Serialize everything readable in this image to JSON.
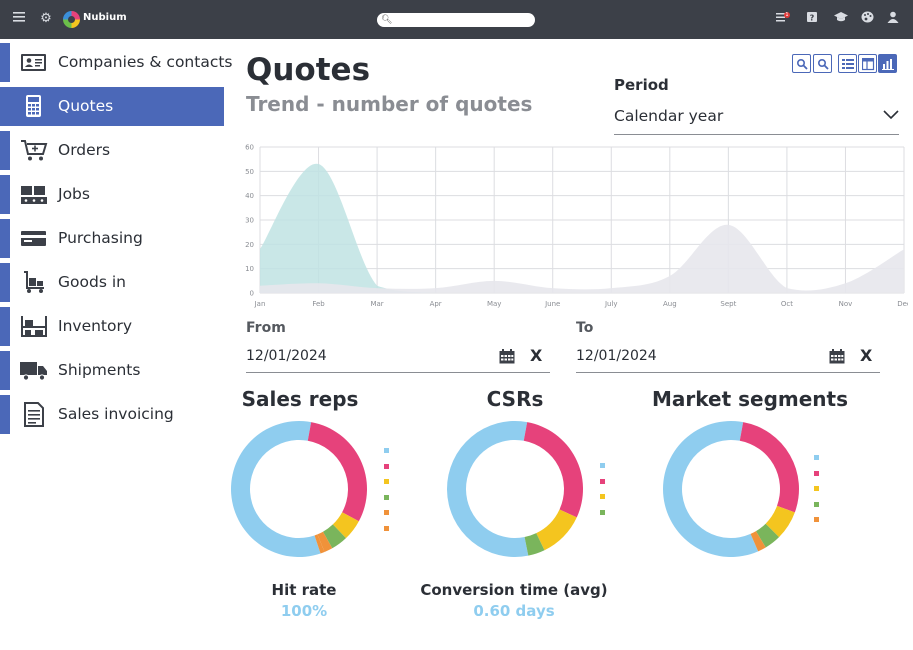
{
  "app": {
    "brand": "Nubium",
    "notification_count": "1"
  },
  "search": {
    "placeholder": ""
  },
  "sidebar": {
    "items": [
      {
        "label": "Companies & contacts",
        "icon": "contact-card-icon",
        "active": false
      },
      {
        "label": "Quotes",
        "icon": "calculator-icon",
        "active": true
      },
      {
        "label": "Orders",
        "icon": "cart-icon",
        "active": false
      },
      {
        "label": "Jobs",
        "icon": "boxes-icon",
        "active": false
      },
      {
        "label": "Purchasing",
        "icon": "credit-card-icon",
        "active": false
      },
      {
        "label": "Goods in",
        "icon": "trolley-icon",
        "active": false
      },
      {
        "label": "Inventory",
        "icon": "shelves-icon",
        "active": false
      },
      {
        "label": "Shipments",
        "icon": "truck-icon",
        "active": false
      },
      {
        "label": "Sales invoicing",
        "icon": "invoice-icon",
        "active": false
      }
    ]
  },
  "main": {
    "title": "Quotes",
    "subtitle": "Trend - number of quotes",
    "period": {
      "label": "Period",
      "value": "Calendar year"
    },
    "from": {
      "label": "From",
      "value": "12/01/2024",
      "clear": "X"
    },
    "to": {
      "label": "To",
      "value": "12/01/2024",
      "clear": "X"
    }
  },
  "colors": {
    "accent": "#4b68b8",
    "light_blue": "#8fcdef",
    "pink": "#e6427b",
    "yellow": "#f4c51f",
    "green": "#7ab55c",
    "orange": "#f0923a",
    "teal_area": "#bfe3e3",
    "grey_area": "#e7e7ec"
  },
  "chart_data": [
    {
      "type": "area",
      "title": "",
      "xlabel": "",
      "ylabel": "",
      "categories": [
        "Jan",
        "Feb",
        "Mar",
        "Apr",
        "May",
        "June",
        "July",
        "Aug",
        "Sept",
        "Oct",
        "Nov",
        "Dec"
      ],
      "yticks": [
        0,
        10,
        20,
        30,
        40,
        50,
        60
      ],
      "ylim": [
        0,
        60
      ],
      "grid": true,
      "series": [
        {
          "color": "#bfe3e3",
          "values": [
            18,
            53,
            3,
            0,
            0,
            0,
            0,
            0,
            0,
            0,
            0,
            0
          ]
        },
        {
          "color": "#e7e7ec",
          "values": [
            3,
            4,
            2,
            2,
            5,
            2,
            2,
            7,
            28,
            2,
            4,
            18
          ]
        }
      ]
    },
    {
      "type": "pie",
      "title": "Sales reps",
      "legend": "right",
      "slices": [
        {
          "color": "#8fcdef",
          "value": 58
        },
        {
          "color": "#e6427b",
          "value": 30
        },
        {
          "color": "#f4c51f",
          "value": 5
        },
        {
          "color": "#7ab55c",
          "value": 4
        },
        {
          "color": "#f0923a",
          "value": 2
        },
        {
          "color": "#f0923a",
          "value": 1
        }
      ]
    },
    {
      "type": "pie",
      "title": "CSRs",
      "legend": "right",
      "slices": [
        {
          "color": "#8fcdef",
          "value": 56
        },
        {
          "color": "#e6427b",
          "value": 29
        },
        {
          "color": "#f4c51f",
          "value": 11
        },
        {
          "color": "#7ab55c",
          "value": 4
        }
      ]
    },
    {
      "type": "pie",
      "title": "Market segments",
      "legend": "right",
      "slices": [
        {
          "color": "#8fcdef",
          "value": 60
        },
        {
          "color": "#e6427b",
          "value": 28
        },
        {
          "color": "#f4c51f",
          "value": 7
        },
        {
          "color": "#7ab55c",
          "value": 4
        },
        {
          "color": "#f0923a",
          "value": 2
        }
      ]
    }
  ],
  "stats": [
    {
      "label": "Hit rate",
      "value": "100%"
    },
    {
      "label": "Conversion time (avg)",
      "value": "0.60 days"
    }
  ]
}
